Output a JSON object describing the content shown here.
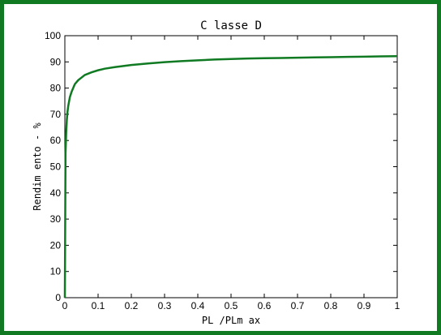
{
  "chart_data": {
    "type": "line",
    "title": "C lasse D",
    "xlabel": "PL /PLm ax",
    "ylabel": "Rendim ento - %",
    "xlim": [
      0,
      1
    ],
    "ylim": [
      0,
      100
    ],
    "xticks": [
      "0",
      "0.1",
      "0.2",
      "0.3",
      "0.4",
      "0.5",
      "0.6",
      "0.7",
      "0.8",
      "0.9",
      "1"
    ],
    "yticks": [
      "0",
      "10",
      "20",
      "30",
      "40",
      "50",
      "60",
      "70",
      "80",
      "90",
      "100"
    ],
    "grid": false,
    "series": [
      {
        "color": "#0f7a22",
        "x": [
          0,
          0.002,
          0.004,
          0.006,
          0.008,
          0.01,
          0.015,
          0.02,
          0.03,
          0.04,
          0.05,
          0.06,
          0.08,
          0.1,
          0.12,
          0.15,
          0.2,
          0.25,
          0.3,
          0.35,
          0.4,
          0.45,
          0.5,
          0.55,
          0.6,
          0.65,
          0.7,
          0.75,
          0.8,
          0.85,
          0.9,
          0.95,
          1.0
        ],
        "y": [
          0,
          55,
          63,
          68,
          71,
          73,
          76.5,
          78.5,
          81.5,
          83,
          84,
          85,
          86,
          86.8,
          87.4,
          88,
          88.8,
          89.4,
          89.9,
          90.3,
          90.6,
          90.9,
          91.1,
          91.3,
          91.4,
          91.5,
          91.6,
          91.7,
          91.8,
          91.9,
          92.0,
          92.1,
          92.2
        ]
      }
    ]
  }
}
